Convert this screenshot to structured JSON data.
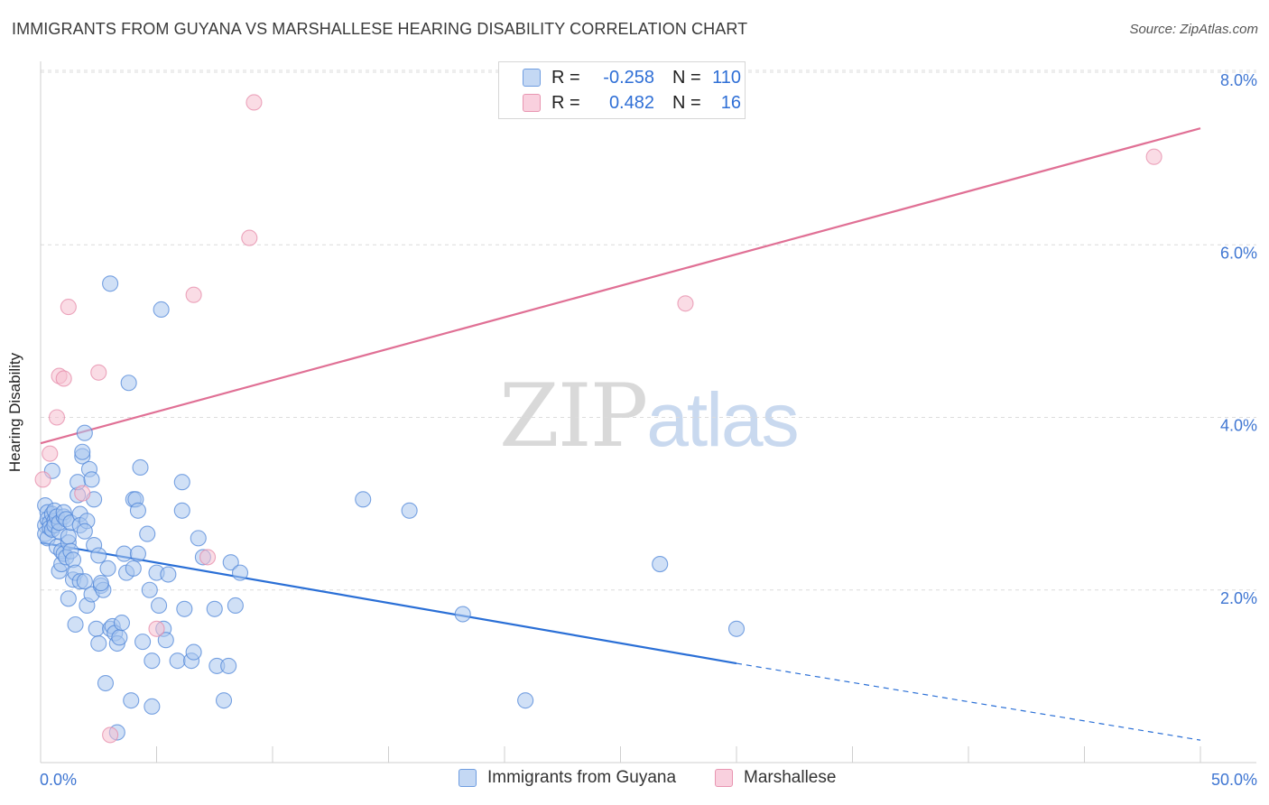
{
  "title": "IMMIGRANTS FROM GUYANA VS MARSHALLESE HEARING DISABILITY CORRELATION CHART",
  "source": "Source: ZipAtlas.com",
  "watermark": {
    "zip": "ZIP",
    "atlas": "atlas"
  },
  "legend": {
    "rows": [
      {
        "r_label": "R =",
        "r_value": "-0.258",
        "n_label": "N =",
        "n_value": "110"
      },
      {
        "r_label": "R =",
        "r_value": "0.482",
        "n_label": "N =",
        "n_value": "16"
      }
    ]
  },
  "bottom_legend": {
    "series1": "Immigrants from Guyana",
    "series2": "Marshallese"
  },
  "colors": {
    "blue_fill": "#a9c6ee",
    "blue_stroke": "#4f86d8",
    "blue_line": "#2a6fd6",
    "pink_fill": "#f6bfd0",
    "pink_stroke": "#e58aa8",
    "pink_line": "#e07095",
    "tick_text": "#3f76d2",
    "grid": "#dcdcdc"
  },
  "chart_data": {
    "type": "scatter",
    "title": "IMMIGRANTS FROM GUYANA VS MARSHALLESE HEARING DISABILITY CORRELATION CHART",
    "xlabel": "",
    "ylabel": "Hearing Disability",
    "xlim": [
      0,
      50
    ],
    "ylim": [
      0,
      8
    ],
    "x_tick_labels": [
      "0.0%",
      "50.0%"
    ],
    "y_ticks": [
      2,
      4,
      6,
      8
    ],
    "y_tick_labels": [
      "2.0%",
      "4.0%",
      "6.0%",
      "8.0%"
    ],
    "series": [
      {
        "name": "Immigrants from Guyana",
        "R": -0.258,
        "N": 110,
        "trend": {
          "x0": 0,
          "y0": 2.55,
          "x1": 30,
          "y1": 1.15,
          "dashed_to_x": 50,
          "dashed_to_y": 0.26
        },
        "points": [
          [
            0.2,
            2.98
          ],
          [
            0.2,
            2.75
          ],
          [
            0.2,
            2.65
          ],
          [
            0.3,
            2.9
          ],
          [
            0.3,
            2.82
          ],
          [
            0.3,
            2.6
          ],
          [
            0.4,
            2.78
          ],
          [
            0.4,
            2.72
          ],
          [
            0.5,
            3.38
          ],
          [
            0.5,
            2.88
          ],
          [
            0.5,
            2.7
          ],
          [
            0.6,
            2.8
          ],
          [
            0.6,
            2.92
          ],
          [
            0.6,
            2.75
          ],
          [
            0.7,
            2.5
          ],
          [
            0.7,
            2.85
          ],
          [
            0.8,
            2.22
          ],
          [
            0.8,
            2.68
          ],
          [
            0.8,
            2.78
          ],
          [
            0.9,
            2.3
          ],
          [
            0.9,
            2.45
          ],
          [
            1.0,
            2.85
          ],
          [
            1.0,
            2.9
          ],
          [
            1.0,
            2.42
          ],
          [
            1.1,
            2.38
          ],
          [
            1.1,
            2.82
          ],
          [
            1.2,
            1.9
          ],
          [
            1.2,
            2.55
          ],
          [
            1.2,
            2.62
          ],
          [
            1.3,
            2.45
          ],
          [
            1.3,
            2.78
          ],
          [
            1.4,
            2.35
          ],
          [
            1.4,
            2.12
          ],
          [
            1.5,
            2.2
          ],
          [
            1.5,
            1.6
          ],
          [
            1.6,
            3.1
          ],
          [
            1.6,
            3.25
          ],
          [
            1.7,
            2.1
          ],
          [
            1.7,
            2.88
          ],
          [
            1.7,
            2.75
          ],
          [
            1.8,
            3.55
          ],
          [
            1.8,
            3.6
          ],
          [
            1.9,
            3.82
          ],
          [
            1.9,
            2.1
          ],
          [
            2.0,
            2.8
          ],
          [
            2.0,
            1.82
          ],
          [
            2.1,
            3.4
          ],
          [
            2.2,
            3.28
          ],
          [
            2.2,
            1.95
          ],
          [
            2.3,
            3.05
          ],
          [
            2.3,
            2.52
          ],
          [
            2.4,
            1.55
          ],
          [
            2.5,
            2.4
          ],
          [
            2.5,
            1.38
          ],
          [
            2.6,
            2.05
          ],
          [
            2.7,
            2.0
          ],
          [
            2.8,
            0.92
          ],
          [
            2.9,
            2.25
          ],
          [
            3.0,
            5.55
          ],
          [
            3.0,
            1.55
          ],
          [
            3.1,
            1.58
          ],
          [
            3.2,
            1.5
          ],
          [
            3.3,
            0.35
          ],
          [
            3.3,
            1.38
          ],
          [
            3.4,
            1.45
          ],
          [
            3.5,
            1.62
          ],
          [
            3.6,
            2.42
          ],
          [
            3.7,
            2.2
          ],
          [
            3.8,
            4.4
          ],
          [
            3.9,
            0.72
          ],
          [
            4.0,
            3.05
          ],
          [
            4.0,
            2.25
          ],
          [
            4.1,
            3.05
          ],
          [
            4.2,
            2.42
          ],
          [
            4.2,
            2.92
          ],
          [
            4.3,
            3.42
          ],
          [
            4.4,
            1.4
          ],
          [
            4.6,
            2.65
          ],
          [
            4.7,
            2.0
          ],
          [
            4.8,
            0.65
          ],
          [
            4.8,
            1.18
          ],
          [
            5.0,
            2.2
          ],
          [
            5.1,
            1.82
          ],
          [
            5.2,
            5.25
          ],
          [
            5.3,
            1.55
          ],
          [
            5.4,
            1.42
          ],
          [
            5.5,
            2.18
          ],
          [
            5.9,
            1.18
          ],
          [
            6.1,
            3.25
          ],
          [
            6.1,
            2.92
          ],
          [
            6.2,
            1.78
          ],
          [
            6.5,
            1.18
          ],
          [
            6.6,
            1.28
          ],
          [
            6.8,
            2.6
          ],
          [
            7.0,
            2.38
          ],
          [
            7.5,
            1.78
          ],
          [
            7.6,
            1.12
          ],
          [
            7.9,
            0.72
          ],
          [
            8.1,
            1.12
          ],
          [
            8.2,
            2.32
          ],
          [
            8.4,
            1.82
          ],
          [
            8.6,
            2.2
          ],
          [
            13.9,
            3.05
          ],
          [
            15.9,
            2.92
          ],
          [
            18.2,
            1.72
          ],
          [
            20.9,
            0.72
          ],
          [
            26.7,
            2.3
          ],
          [
            30.0,
            1.55
          ],
          [
            2.6,
            2.08
          ],
          [
            1.9,
            2.68
          ]
        ]
      },
      {
        "name": "Marshallese",
        "R": 0.482,
        "N": 16,
        "trend": {
          "x0": 0,
          "y0": 3.7,
          "x1": 50,
          "y1": 7.35
        },
        "points": [
          [
            0.1,
            3.28
          ],
          [
            0.4,
            3.58
          ],
          [
            0.7,
            4.0
          ],
          [
            0.8,
            4.48
          ],
          [
            1.0,
            4.45
          ],
          [
            1.2,
            5.28
          ],
          [
            1.8,
            3.12
          ],
          [
            2.5,
            4.52
          ],
          [
            3.0,
            0.32
          ],
          [
            5.0,
            1.55
          ],
          [
            6.6,
            5.42
          ],
          [
            7.2,
            2.38
          ],
          [
            9.0,
            6.08
          ],
          [
            9.2,
            7.65
          ],
          [
            27.8,
            5.32
          ],
          [
            48.0,
            7.02
          ]
        ]
      }
    ]
  }
}
